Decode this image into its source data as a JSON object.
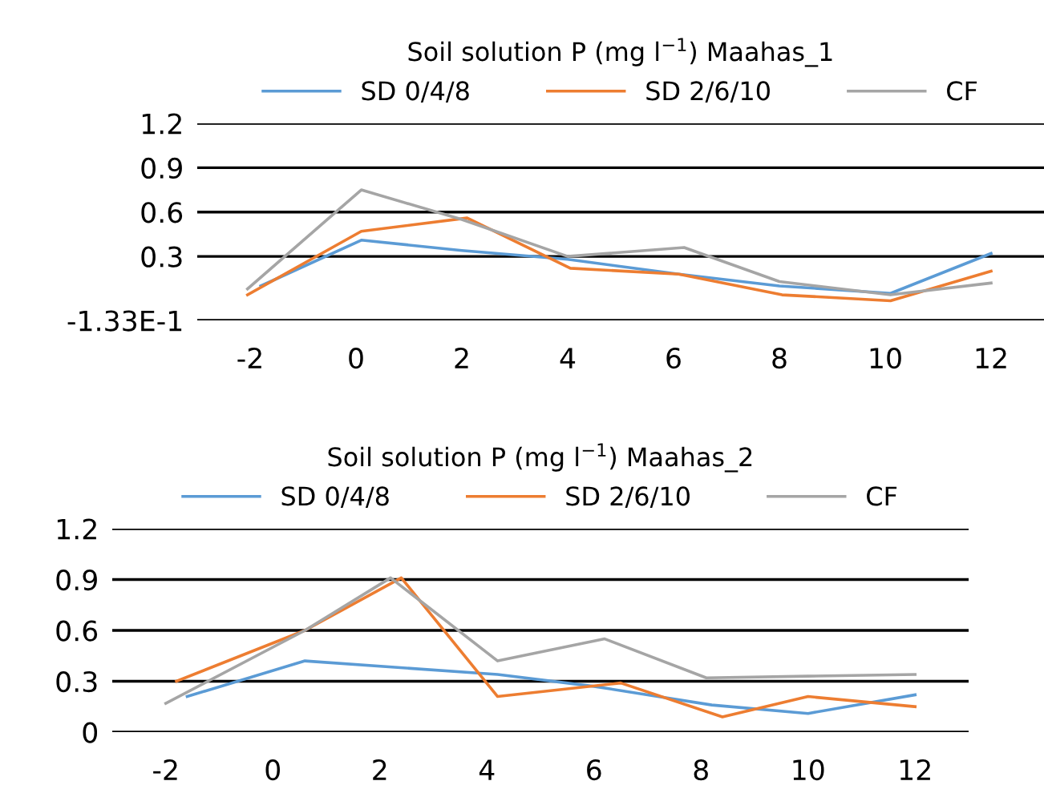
{
  "chart_data": [
    {
      "type": "line",
      "title": "Soil solution P (mg l$^{−1}$) Maahas_1",
      "legend": "top",
      "grid": "y",
      "marker": "none",
      "line_style": "solid",
      "xlim": [
        -3,
        13
      ],
      "xticks": [
        -2,
        0,
        2,
        4,
        6,
        8,
        10,
        12
      ],
      "ylim": [
        -0.133,
        1.2
      ],
      "yticks": [
        {
          "value": -0.133,
          "label": "-1.33E-1"
        },
        0.3,
        0.6,
        0.9,
        1.2
      ],
      "series": [
        {
          "name": "SD 0/4/8",
          "color": "#5b9bd5",
          "x": [
            -1.8,
            0.1,
            2,
            4,
            6.1,
            8,
            10.1,
            12
          ],
          "values": [
            0.1,
            0.41,
            0.34,
            0.28,
            0.18,
            0.1,
            0.05,
            0.32
          ]
        },
        {
          "name": "SD 2/6/10",
          "color": "#ed7d31",
          "x": [
            -2.05,
            0.1,
            2.1,
            4.05,
            6.1,
            8.05,
            10.1,
            12
          ],
          "values": [
            0.04,
            0.47,
            0.56,
            0.22,
            0.18,
            0.04,
            0.0,
            0.2
          ]
        },
        {
          "name": "CF",
          "color": "#a5a5a5",
          "x": [
            -2.05,
            0.1,
            2,
            4,
            6.2,
            8,
            10.1,
            12
          ],
          "values": [
            0.08,
            0.75,
            0.55,
            0.3,
            0.36,
            0.13,
            0.04,
            0.12
          ]
        }
      ]
    },
    {
      "type": "line",
      "title": "Soil solution P (mg l$^{−1}$) Maahas_2",
      "legend": "top",
      "grid": "y",
      "marker": "none",
      "line_style": "solid",
      "xlim": [
        -3,
        13
      ],
      "xticks": [
        -2,
        0,
        2,
        4,
        6,
        8,
        10,
        12
      ],
      "ylim": [
        0,
        1.2
      ],
      "yticks": [
        0,
        0.3,
        0.6,
        0.9,
        1.2
      ],
      "series": [
        {
          "name": "SD 0/4/8",
          "color": "#5b9bd5",
          "x": [
            -1.6,
            0.6,
            4.2,
            6,
            8.2,
            10,
            12
          ],
          "values": [
            0.21,
            0.42,
            0.34,
            0.27,
            0.16,
            0.11,
            0.22
          ]
        },
        {
          "name": "SD 2/6/10",
          "color": "#ed7d31",
          "x": [
            -1.8,
            0.6,
            2.4,
            4.2,
            6.5,
            8.4,
            10,
            12
          ],
          "values": [
            0.3,
            0.6,
            0.91,
            0.21,
            0.29,
            0.09,
            0.21,
            0.15
          ]
        },
        {
          "name": "CF",
          "color": "#a5a5a5",
          "x": [
            -2,
            0.6,
            2.2,
            4.2,
            6.2,
            8.1,
            10,
            12
          ],
          "values": [
            0.17,
            0.6,
            0.91,
            0.42,
            0.55,
            0.32,
            0.33,
            0.34
          ]
        }
      ]
    }
  ]
}
